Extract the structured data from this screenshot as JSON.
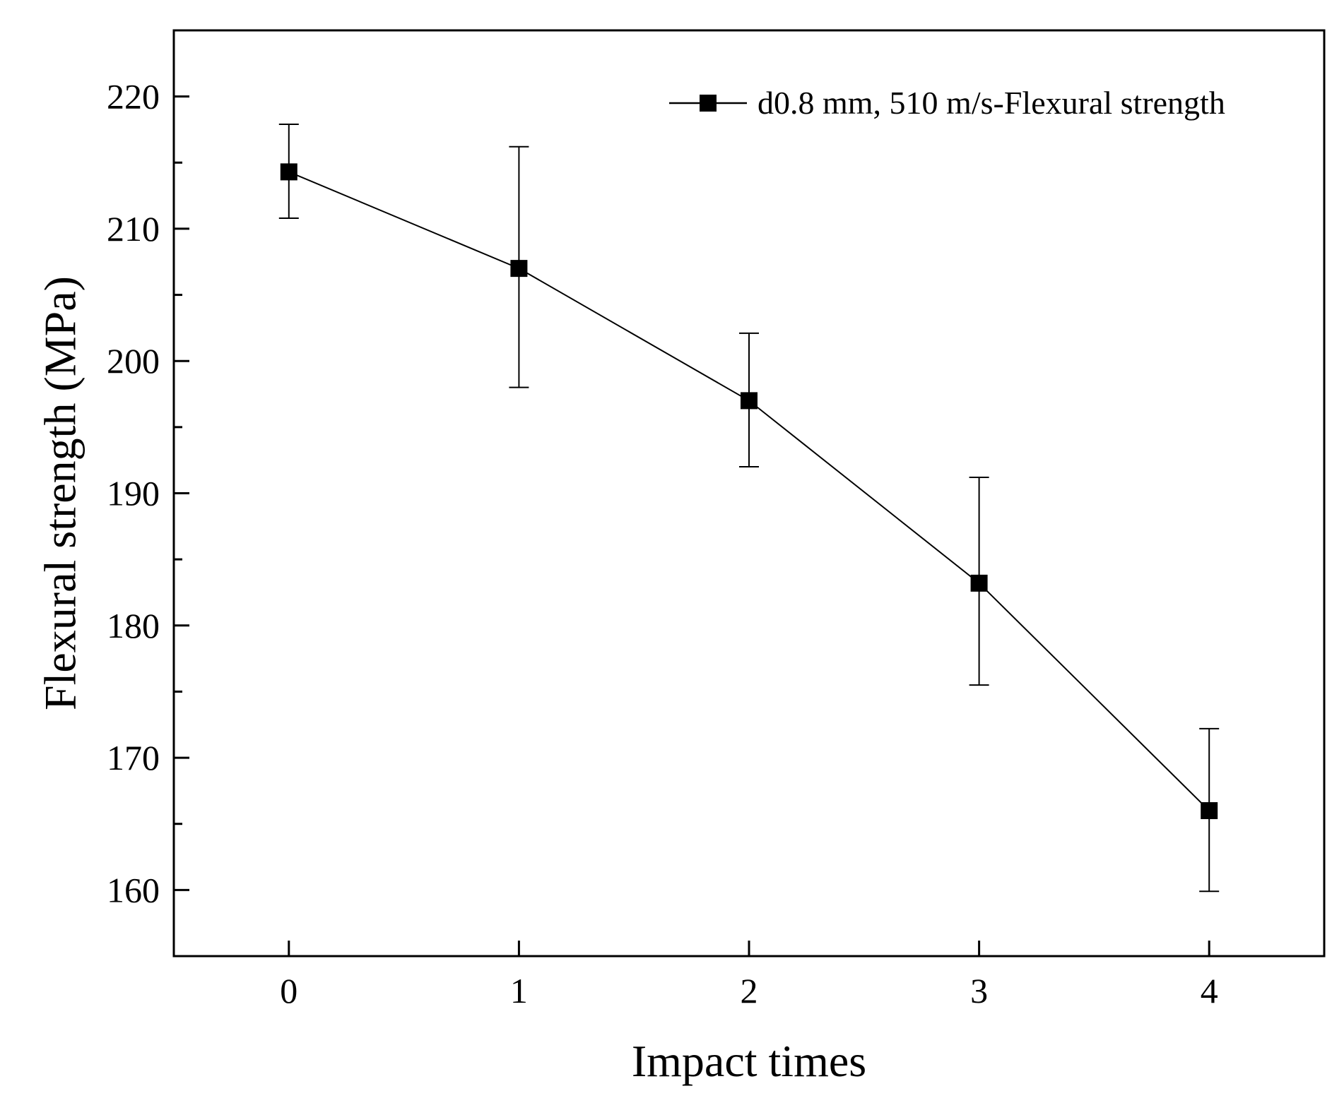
{
  "chart_data": {
    "type": "line",
    "title": "",
    "xlabel": "Impact times",
    "ylabel": "Flexural strength (MPa)",
    "xlim": [
      -0.5,
      4.5
    ],
    "ylim": [
      155,
      225
    ],
    "xticks": [
      0,
      1,
      2,
      3,
      4
    ],
    "xtick_labels": [
      "0",
      "1",
      "2",
      "3",
      "4"
    ],
    "yticks": [
      160,
      170,
      180,
      190,
      200,
      210,
      220
    ],
    "ytick_labels": [
      "160",
      "170",
      "180",
      "190",
      "200",
      "210",
      "220"
    ],
    "grid": false,
    "legend_position": "top-right",
    "series": [
      {
        "name": "d0.8 mm, 510 m/s-Flexural strength",
        "marker": "square",
        "x": [
          0,
          1,
          2,
          3,
          4
        ],
        "y": [
          214.3,
          207.0,
          197.0,
          183.2,
          166.0
        ],
        "error_upper": [
          217.9,
          216.2,
          202.1,
          191.2,
          172.2
        ],
        "error_lower": [
          210.8,
          198.0,
          192.0,
          175.5,
          159.9
        ]
      }
    ]
  },
  "colors": {
    "line": "#000000",
    "marker": "#000000",
    "background": "#ffffff"
  }
}
